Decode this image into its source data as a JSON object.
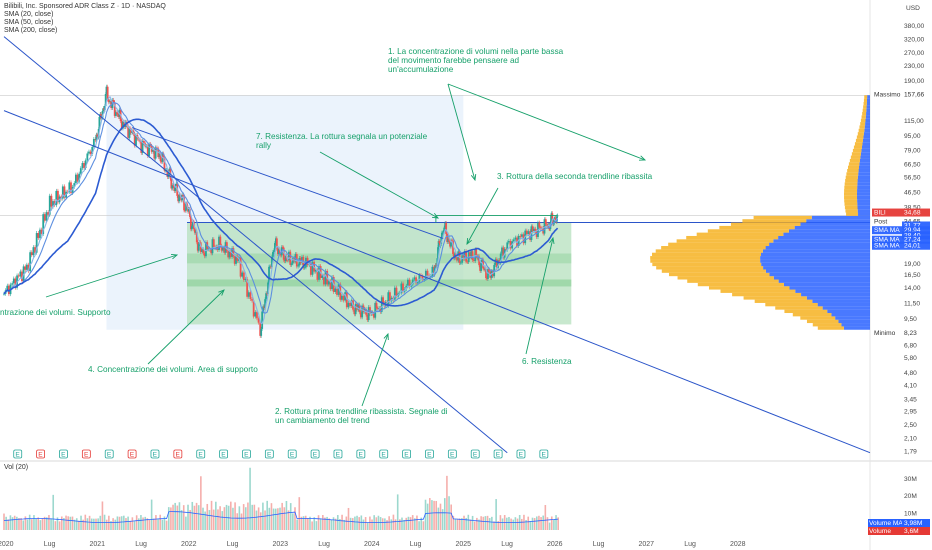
{
  "header": {
    "title": "Bilibili, Inc. Sponsored ADR Class Z · 1D · NASDAQ",
    "indicators": [
      "SMA (20, close)",
      "SMA (50, close)",
      "SMA (200, close)"
    ],
    "currency": "USD",
    "volume_indicator": "Vol (20)"
  },
  "chart_data": {
    "type": "line",
    "scale": "log",
    "price_axis_ticks": [
      380.0,
      320.0,
      270.0,
      230.0,
      190.0,
      115.0,
      95.0,
      79.0,
      66.5,
      56.5,
      46.5,
      38.5,
      19.0,
      16.5,
      14.0,
      11.5,
      9.5,
      6.8,
      5.8,
      4.8,
      4.1,
      3.45,
      2.95,
      2.5,
      2.1,
      1.79
    ],
    "time_axis_ticks": [
      "2020",
      "Lug",
      "2021",
      "Lug",
      "2022",
      "Lug",
      "2023",
      "Lug",
      "2024",
      "Lug",
      "2025",
      "Lug",
      "2026",
      "Lug",
      "2027",
      "Lug",
      "2028"
    ],
    "price_tags": [
      {
        "label": "Massimo",
        "value": "157,66"
      },
      {
        "label": "BILI",
        "value": "34,68"
      },
      {
        "label": "Post",
        "value": "34,65"
      },
      {
        "label": "",
        "value": "31,77"
      },
      {
        "label": "SMA MA",
        "value": "29,94"
      },
      {
        "label": "",
        "value": "28,40"
      },
      {
        "label": "SMA MA",
        "value": "27,24"
      },
      {
        "label": "SMA MA",
        "value": "24,01"
      },
      {
        "label": "Minimo",
        "value": "8,23"
      }
    ],
    "volume_axis_ticks": [
      "30M",
      "20M",
      "10M"
    ],
    "volume_tags": [
      {
        "label": "Volume MA",
        "value": "3,98M"
      },
      {
        "label": "Volume",
        "value": "3,6M"
      }
    ],
    "price_series": [
      {
        "t": 2020.0,
        "p": 13
      },
      {
        "t": 2020.25,
        "p": 18
      },
      {
        "t": 2020.5,
        "p": 40
      },
      {
        "t": 2020.75,
        "p": 50
      },
      {
        "t": 2021.0,
        "p": 90
      },
      {
        "t": 2021.12,
        "p": 157.66
      },
      {
        "t": 2021.3,
        "p": 110
      },
      {
        "t": 2021.5,
        "p": 85
      },
      {
        "t": 2021.7,
        "p": 75
      },
      {
        "t": 2021.85,
        "p": 50
      },
      {
        "t": 2022.0,
        "p": 38
      },
      {
        "t": 2022.15,
        "p": 22
      },
      {
        "t": 2022.35,
        "p": 24
      },
      {
        "t": 2022.55,
        "p": 20
      },
      {
        "t": 2022.8,
        "p": 8.23
      },
      {
        "t": 2022.95,
        "p": 24
      },
      {
        "t": 2023.1,
        "p": 20
      },
      {
        "t": 2023.3,
        "p": 19
      },
      {
        "t": 2023.55,
        "p": 15
      },
      {
        "t": 2023.8,
        "p": 11
      },
      {
        "t": 2024.0,
        "p": 10
      },
      {
        "t": 2024.2,
        "p": 12
      },
      {
        "t": 2024.45,
        "p": 15
      },
      {
        "t": 2024.7,
        "p": 17
      },
      {
        "t": 2024.8,
        "p": 30
      },
      {
        "t": 2024.95,
        "p": 20
      },
      {
        "t": 2025.15,
        "p": 21
      },
      {
        "t": 2025.3,
        "p": 16
      },
      {
        "t": 2025.5,
        "p": 24
      },
      {
        "t": 2025.75,
        "p": 28
      },
      {
        "t": 2025.95,
        "p": 31
      },
      {
        "t": 2026.05,
        "p": 34.68
      }
    ],
    "annotations": [
      {
        "id": "1",
        "lines": [
          "1. La concentrazione di volumi nella parte bassa",
          "del movimento farebbe pensaere ad",
          "un'accumulazione"
        ]
      },
      {
        "id": "7",
        "lines": [
          "7. Resistenza. La rottura segnala un potenziale",
          "rally"
        ]
      },
      {
        "id": "3",
        "lines": [
          "3. Rottura della seconda trendline ribassita"
        ]
      },
      {
        "id": "5",
        "lines": [
          "ntrazione dei volumi. Supporto"
        ]
      },
      {
        "id": "4",
        "lines": [
          "4. Concentrazione dei volumi. Area di supporto"
        ]
      },
      {
        "id": "6",
        "lines": [
          "6. Resistenza"
        ]
      },
      {
        "id": "2",
        "lines": [
          "2. Rottura prima trendline ribassista. Segnale di",
          "un cambiamento del trend"
        ]
      }
    ],
    "earnings_markers": [
      "E",
      "E",
      "E",
      "E",
      "E",
      "E",
      "E",
      "E",
      "E",
      "E",
      "E",
      "E",
      "E",
      "E",
      "E",
      "E",
      "E",
      "E",
      "E",
      "E",
      "E",
      "E",
      "E",
      "E"
    ],
    "colors": {
      "trendline": "#2b55c9",
      "sma_fast": "#88b4e6",
      "sma_slow": "#2c5bd2",
      "annotation": "#16a06a",
      "volume_profile_up": "#2962ff",
      "volume_profile_down": "#f6b221",
      "support_zone": "#b6e0bd",
      "up_candle": "#26a69a",
      "down_candle": "#ef5350"
    }
  }
}
